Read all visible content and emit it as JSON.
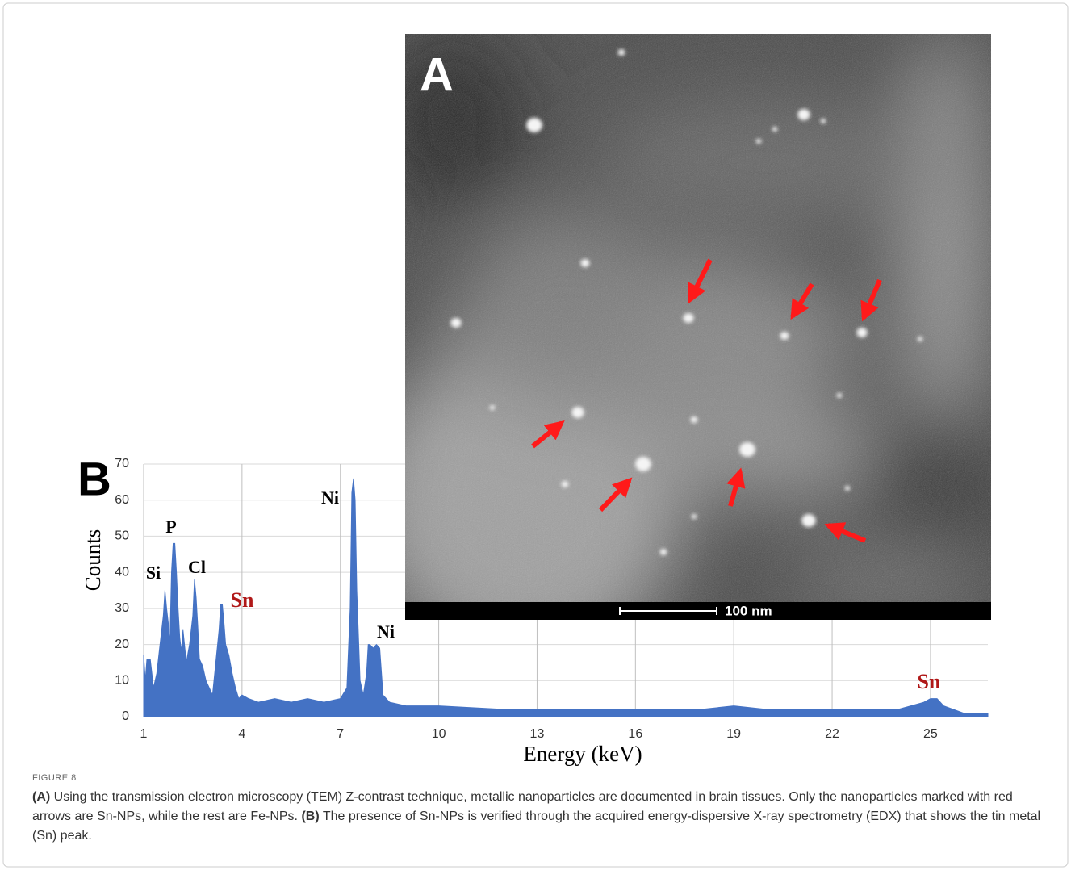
{
  "figure": {
    "panel_a_label": "A",
    "panel_b_label": "B",
    "scale_bar": "100 nm",
    "label": "FIGURE 8",
    "caption_a_label": "(A)",
    "caption_a_text": "Using the transmission electron microscopy (TEM) Z-contrast technique, metallic nanoparticles are documented in brain tissues. Only the nanoparticles marked with red arrows are Sn-NPs, while the rest are Fe-NPs.",
    "caption_b_label": "(B)",
    "caption_b_text": "The presence of Sn-NPs is verified through the acquired energy-dispersive X-ray spectrometry (EDX) that shows the tin metal (Sn) peak."
  },
  "chart_data": {
    "type": "area",
    "x_label": "Energy (keV)",
    "y_label": "Counts",
    "color": "#4472c4",
    "grid": true,
    "xlim": [
      1,
      26.75
    ],
    "xticks": [
      1,
      4,
      7,
      10,
      13,
      16,
      19,
      22,
      25
    ],
    "ylim": [
      0,
      70
    ],
    "yticks": [
      0,
      10,
      20,
      30,
      40,
      50,
      60,
      70
    ],
    "x": [
      1.0,
      1.05,
      1.1,
      1.2,
      1.3,
      1.4,
      1.5,
      1.6,
      1.65,
      1.7,
      1.75,
      1.8,
      1.85,
      1.9,
      1.95,
      2.0,
      2.05,
      2.1,
      2.15,
      2.2,
      2.3,
      2.4,
      2.5,
      2.55,
      2.6,
      2.65,
      2.7,
      2.8,
      2.9,
      3.0,
      3.1,
      3.2,
      3.3,
      3.35,
      3.4,
      3.45,
      3.5,
      3.6,
      3.7,
      3.8,
      3.9,
      4.0,
      4.2,
      4.5,
      5.0,
      5.5,
      6.0,
      6.5,
      7.0,
      7.2,
      7.3,
      7.35,
      7.4,
      7.45,
      7.5,
      7.6,
      7.7,
      7.8,
      7.85,
      7.9,
      8.0,
      8.1,
      8.2,
      8.3,
      8.5,
      9.0,
      10,
      12,
      14,
      16,
      18,
      19.0,
      20,
      22,
      24,
      24.8,
      25.0,
      25.2,
      25.4,
      26,
      26.75
    ],
    "values": [
      17,
      10,
      16,
      16,
      8,
      12,
      20,
      28,
      35,
      30,
      26,
      20,
      40,
      48,
      48,
      40,
      30,
      22,
      18,
      24,
      15,
      20,
      28,
      38,
      33,
      25,
      16,
      14,
      10,
      8,
      6,
      15,
      24,
      31,
      31,
      26,
      20,
      17,
      12,
      8,
      5,
      6,
      5,
      4,
      5,
      4,
      5,
      4,
      5,
      8,
      30,
      62,
      66,
      60,
      35,
      10,
      6,
      12,
      20,
      20,
      19,
      20,
      19,
      6,
      4,
      3,
      3,
      2,
      2,
      2,
      2,
      3,
      2,
      2,
      2,
      4,
      5,
      5,
      3,
      1,
      1
    ],
    "annotations": [
      {
        "text": "Si",
        "color": "#000000"
      },
      {
        "text": "P",
        "color": "#000000"
      },
      {
        "text": "Cl",
        "color": "#000000"
      },
      {
        "text": "Sn",
        "color": "#b01818"
      },
      {
        "text": "Ni",
        "color": "#000000"
      },
      {
        "text": "Ni",
        "color": "#000000"
      },
      {
        "text": "Sn",
        "color": "#b01818"
      }
    ]
  }
}
